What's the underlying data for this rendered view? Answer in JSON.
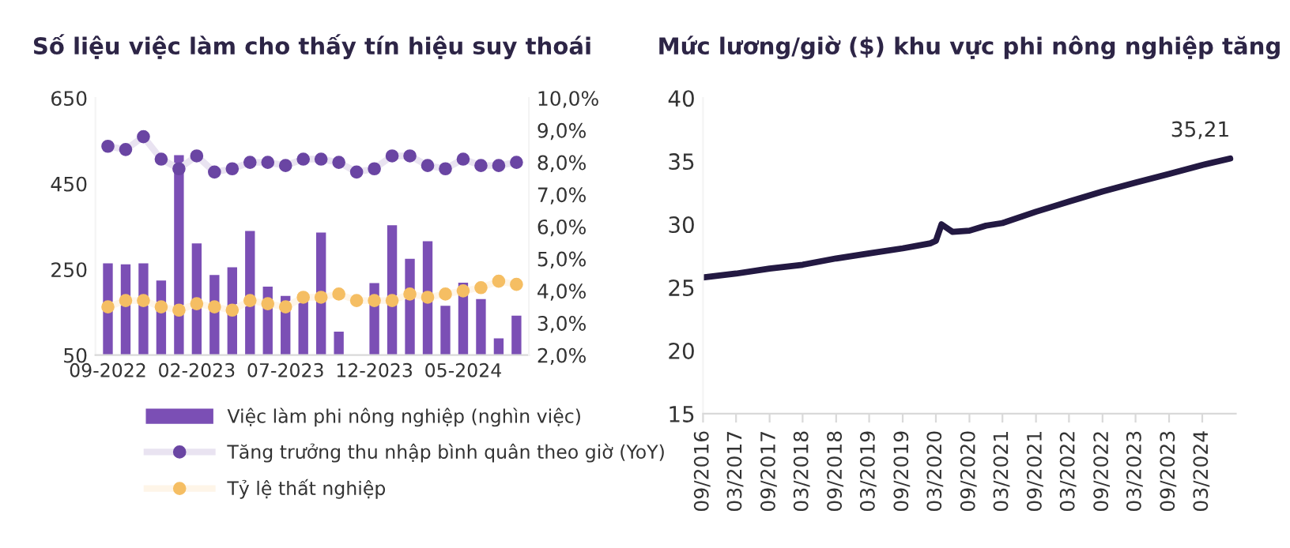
{
  "chart_data": [
    {
      "type": "bar",
      "title": "Số liệu việc làm cho thấy tín hiệu suy thoái",
      "categories": [
        "09-2022",
        null,
        null,
        null,
        null,
        "02-2023",
        null,
        null,
        null,
        null,
        "07-2023",
        null,
        null,
        null,
        null,
        "12-2023",
        null,
        null,
        null,
        null,
        "05-2024",
        null,
        null,
        null
      ],
      "series": [
        {
          "name": "Việc làm phi nông nghiệp (nghìn việc)",
          "type": "bar",
          "color": "#7b4fb5",
          "values": [
            264,
            262,
            264,
            224,
            517,
            311,
            237,
            255,
            340,
            210,
            188,
            180,
            336,
            105,
            null,
            218,
            353,
            275,
            316,
            165,
            219,
            181,
            89,
            142
          ]
        },
        {
          "name": "Tăng trưởng thu nhập bình quân theo giờ (YoY)",
          "type": "line",
          "axis": "y2",
          "marker": "circle",
          "color": "#6a45a3",
          "values": [
            8.5,
            8.4,
            8.8,
            8.1,
            7.8,
            8.2,
            7.7,
            7.8,
            8.0,
            8.0,
            7.9,
            8.1,
            8.1,
            8.0,
            7.7,
            7.8,
            8.2,
            8.2,
            7.9,
            7.8,
            8.1,
            7.9,
            7.9,
            8.0
          ]
        },
        {
          "name": "Tỷ lệ thất nghiệp",
          "type": "line",
          "axis": "y2",
          "marker": "circle",
          "color": "#f5be63",
          "values": [
            3.5,
            3.7,
            3.7,
            3.5,
            3.4,
            3.6,
            3.5,
            3.4,
            3.7,
            3.6,
            3.5,
            3.8,
            3.8,
            3.9,
            3.7,
            3.7,
            3.7,
            3.9,
            3.8,
            3.9,
            4.0,
            4.1,
            4.3,
            4.2
          ]
        }
      ],
      "ylim": [
        50,
        650
      ],
      "yticks": [
        50,
        250,
        450,
        650
      ],
      "y2lim": [
        2,
        10
      ],
      "y2ticks": [
        {
          "value": 2,
          "label": "2,0%"
        },
        {
          "value": 3,
          "label": "3,0%"
        },
        {
          "value": 4,
          "label": "4,0%"
        },
        {
          "value": 5,
          "label": "5,0%"
        },
        {
          "value": 6,
          "label": "6,0%"
        },
        {
          "value": 7,
          "label": "7,0%"
        },
        {
          "value": 8,
          "label": "8,0%"
        },
        {
          "value": 9,
          "label": "9,0%"
        },
        {
          "value": 10,
          "label": "10,0%"
        }
      ],
      "legend": "bottom",
      "grid": false
    },
    {
      "type": "line",
      "title": "Mức lương/giờ ($) khu vực phi nông nghiệp tăng",
      "series": [
        {
          "color": "#231942",
          "x": [
            "2016-09",
            "2017-03",
            "2017-09",
            "2018-03",
            "2018-09",
            "2019-03",
            "2019-09",
            "2020-02",
            "2020-03",
            "2020-04",
            "2020-05",
            "2020-06",
            "2020-09",
            "2020-12",
            "2021-03",
            "2021-09",
            "2022-03",
            "2022-09",
            "2023-03",
            "2023-09",
            "2024-03",
            "2024-08"
          ],
          "values": [
            25.8,
            26.1,
            26.5,
            26.8,
            27.3,
            27.7,
            28.1,
            28.5,
            28.7,
            30.0,
            29.7,
            29.4,
            29.5,
            29.9,
            30.1,
            31.0,
            31.8,
            32.6,
            33.3,
            34.0,
            34.7,
            35.21
          ]
        }
      ],
      "annotations": [
        {
          "text": "35,21",
          "x": "2024-08",
          "y": 35.21
        }
      ],
      "xlim": [
        "2016-09",
        "2024-09"
      ],
      "xticks": [
        {
          "value": "2016-09",
          "label": "09/2016"
        },
        {
          "value": "2017-03",
          "label": "03/2017"
        },
        {
          "value": "2017-09",
          "label": "09/2017"
        },
        {
          "value": "2018-03",
          "label": "03/2018"
        },
        {
          "value": "2018-09",
          "label": "09/2018"
        },
        {
          "value": "2019-03",
          "label": "03/2019"
        },
        {
          "value": "2019-09",
          "label": "09/2019"
        },
        {
          "value": "2020-03",
          "label": "03/2020"
        },
        {
          "value": "2020-09",
          "label": "09/2020"
        },
        {
          "value": "2021-03",
          "label": "03/2021"
        },
        {
          "value": "2021-09",
          "label": "09/2021"
        },
        {
          "value": "2022-03",
          "label": "03/2022"
        },
        {
          "value": "2022-09",
          "label": "09/2022"
        },
        {
          "value": "2023-03",
          "label": "03/2023"
        },
        {
          "value": "2023-09",
          "label": "09/2023"
        },
        {
          "value": "2024-03",
          "label": "03/2024"
        }
      ],
      "ylim": [
        15,
        40
      ],
      "yticks": [
        15,
        20,
        25,
        30,
        35,
        40
      ],
      "grid": false,
      "legend": false
    }
  ]
}
